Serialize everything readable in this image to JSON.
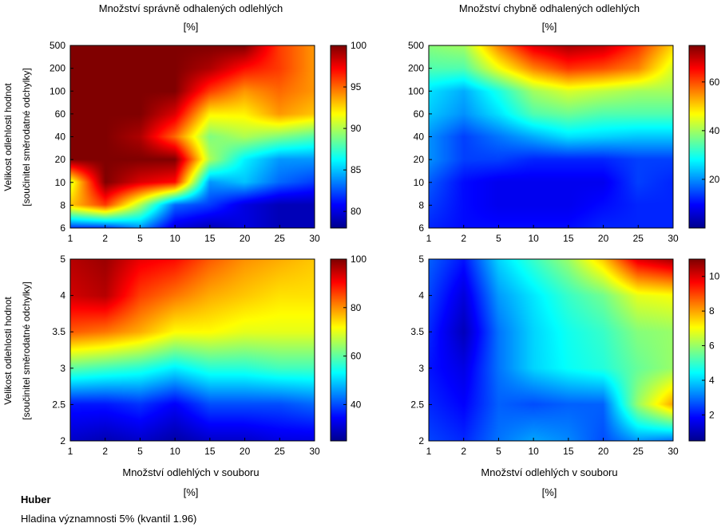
{
  "titles": {
    "top_left_line1": "Množství správně odhalených odlehlých",
    "top_left_line2": "[%]",
    "top_right_line1": "Množství chybně odhalených odlehlých",
    "top_right_line2": "[%]"
  },
  "ylabel": {
    "line1": "Velikost odlehlosti hodnot",
    "line2": "[součinitel směrodatné odchylky]"
  },
  "xlabel": {
    "line1": "Množství odlehlých v souboru",
    "line2": "[%]"
  },
  "footer": {
    "method": "Huber",
    "significance": "Hladina významnosti 5% (kvantil 1.96)"
  },
  "colors": {
    "colormap": "jet",
    "stops": [
      "#00008f",
      "#0000ff",
      "#0080ff",
      "#00ffff",
      "#80ff80",
      "#ffff00",
      "#ff8000",
      "#ff0000",
      "#800000"
    ]
  },
  "chart_data": [
    {
      "id": "correct_large",
      "type": "heatmap",
      "title": "Množství správně odhalených odlehlých [%]",
      "xlabel": "",
      "ylabel": "Velikost odlehlosti hodnot [součinitel směrodatné odchylky]",
      "x": [
        "1",
        "2",
        "5",
        "10",
        "15",
        "20",
        "25",
        "30"
      ],
      "y": [
        "6",
        "8",
        "10",
        "20",
        "40",
        "60",
        "100",
        "200",
        "500"
      ],
      "clim": [
        78,
        100
      ],
      "colorbar_ticks": [
        80,
        85,
        90,
        95,
        100
      ],
      "z": [
        [
          82,
          82,
          84,
          80,
          79,
          80,
          79,
          79
        ],
        [
          93,
          96,
          90,
          83,
          82,
          80,
          79,
          79
        ],
        [
          91,
          100,
          98,
          97,
          84,
          85,
          83,
          82
        ],
        [
          100,
          100,
          100,
          100,
          90,
          86,
          84,
          84
        ],
        [
          100,
          100,
          99,
          95,
          89,
          90,
          89,
          88
        ],
        [
          100,
          100,
          100,
          98,
          92,
          92,
          94,
          93
        ],
        [
          100,
          100,
          100,
          100,
          96,
          94,
          95,
          94
        ],
        [
          100,
          100,
          100,
          100,
          99,
          97,
          96,
          94
        ],
        [
          100,
          100,
          100,
          100,
          100,
          100,
          96,
          94
        ]
      ]
    },
    {
      "id": "wrong_large",
      "type": "heatmap",
      "title": "Množství chybně odhalených odlehlých [%]",
      "xlabel": "",
      "ylabel": "",
      "x": [
        "1",
        "2",
        "5",
        "10",
        "15",
        "20",
        "25",
        "30"
      ],
      "y": [
        "6",
        "8",
        "10",
        "20",
        "40",
        "60",
        "100",
        "200",
        "500"
      ],
      "clim": [
        0,
        75
      ],
      "colorbar_ticks": [
        20,
        40,
        60
      ],
      "z": [
        [
          12,
          10,
          10,
          10,
          10,
          12,
          12,
          12
        ],
        [
          14,
          10,
          8,
          8,
          8,
          10,
          12,
          12
        ],
        [
          16,
          10,
          8,
          8,
          8,
          8,
          14,
          12
        ],
        [
          20,
          14,
          14,
          12,
          12,
          12,
          14,
          14
        ],
        [
          20,
          14,
          18,
          22,
          26,
          25,
          24,
          24
        ],
        [
          24,
          20,
          26,
          34,
          36,
          34,
          34,
          34
        ],
        [
          26,
          22,
          30,
          40,
          44,
          42,
          40,
          40
        ],
        [
          34,
          34,
          46,
          56,
          62,
          60,
          56,
          44
        ],
        [
          38,
          40,
          56,
          68,
          72,
          70,
          62,
          50
        ]
      ]
    },
    {
      "id": "correct_small",
      "type": "heatmap",
      "title": "",
      "xlabel": "Množství odlehlých v souboru [%]",
      "ylabel": "Velikost odlehlosti hodnot [součinitel směrodatné odchylky]",
      "x": [
        "1",
        "2",
        "5",
        "10",
        "15",
        "20",
        "25",
        "30"
      ],
      "y": [
        "2",
        "2.5",
        "3",
        "3.5",
        "4",
        "5"
      ],
      "clim": [
        25,
        100
      ],
      "colorbar_ticks": [
        40,
        60,
        80,
        100
      ],
      "z": [
        [
          30,
          28,
          30,
          27,
          30,
          30,
          32,
          32
        ],
        [
          36,
          36,
          38,
          34,
          40,
          40,
          40,
          42
        ],
        [
          60,
          58,
          56,
          52,
          56,
          56,
          58,
          58
        ],
        [
          84,
          82,
          78,
          72,
          72,
          70,
          70,
          70
        ],
        [
          94,
          96,
          86,
          82,
          78,
          76,
          74,
          74
        ],
        [
          96,
          98,
          92,
          90,
          84,
          80,
          78,
          76
        ]
      ]
    },
    {
      "id": "wrong_small",
      "type": "heatmap",
      "title": "",
      "xlabel": "Množství odlehlých v souboru [%]",
      "ylabel": "",
      "x": [
        "1",
        "2",
        "5",
        "10",
        "15",
        "20",
        "25",
        "30"
      ],
      "y": [
        "2",
        "2.5",
        "3",
        "3.5",
        "4",
        "5"
      ],
      "clim": [
        0.5,
        11
      ],
      "colorbar_ticks": [
        2,
        4,
        6,
        8,
        10
      ],
      "z": [
        [
          2.5,
          2.2,
          3,
          3.5,
          3.2,
          2.6,
          3.4,
          3
        ],
        [
          2.2,
          1.8,
          2.8,
          2.6,
          2.8,
          2.8,
          6,
          8
        ],
        [
          2,
          1.5,
          3,
          4,
          4.5,
          4.8,
          5.5,
          6
        ],
        [
          2.2,
          1,
          3,
          4,
          4.6,
          5,
          5.8,
          6
        ],
        [
          2.5,
          1.4,
          3.4,
          4.2,
          5,
          5.6,
          6.8,
          7
        ],
        [
          2.8,
          2,
          4,
          5,
          6,
          7.6,
          10,
          10.6
        ]
      ]
    }
  ]
}
